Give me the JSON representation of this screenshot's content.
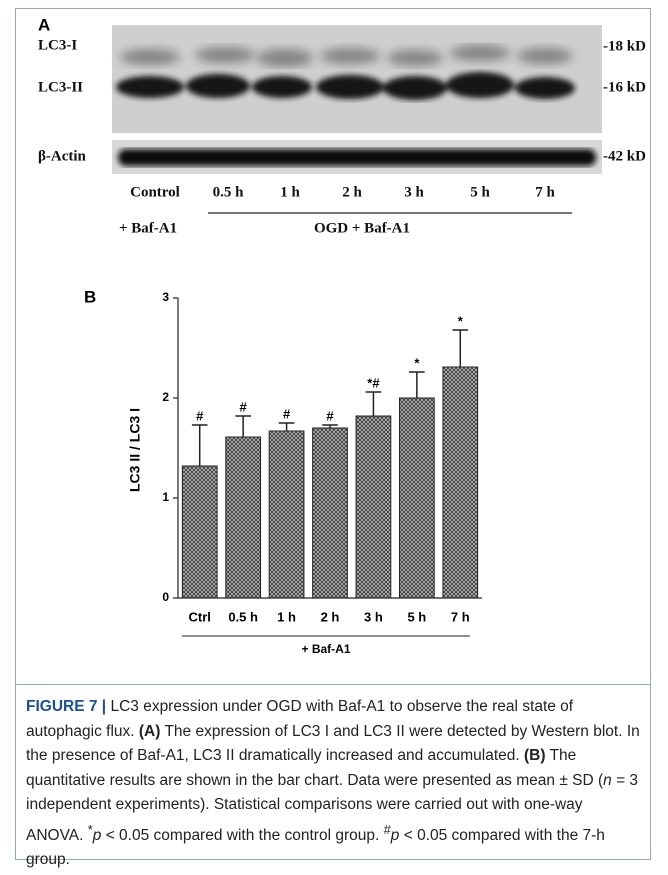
{
  "panel_a": {
    "label": "A",
    "bands": [
      "LC3-I",
      "LC3-II",
      "β-Actin"
    ],
    "sizes": [
      "-18 kD",
      "-16 kD",
      "-42 kD"
    ],
    "lanes": [
      "Control",
      "0.5 h",
      "1 h",
      "2 h",
      "3 h",
      "5 h",
      "7 h"
    ],
    "control_group": "+ Baf-A1",
    "treatment_group": "OGD + Baf-A1"
  },
  "chart_data": {
    "type": "bar",
    "panel_label": "B",
    "ylabel": "LC3 II / LC3 I",
    "group_label": "+ Baf-A1",
    "categories": [
      "Ctrl",
      "0.5 h",
      "1 h",
      "2 h",
      "3 h",
      "5 h",
      "7 h"
    ],
    "values": [
      1.32,
      1.61,
      1.67,
      1.7,
      1.82,
      2.0,
      2.31
    ],
    "errors": [
      0.41,
      0.21,
      0.08,
      0.03,
      0.24,
      0.26,
      0.37
    ],
    "annotations": [
      "#",
      "#",
      "#",
      "#",
      "*#",
      "*",
      "*"
    ],
    "ylim": [
      0,
      3
    ],
    "yticks": [
      0,
      1,
      2,
      3
    ]
  },
  "caption": {
    "label": "FIGURE 7",
    "separator": "|",
    "title": "LC3 expression under OGD with Baf-A1 to observe the real state of autophagic flux.",
    "a_label": "(A)",
    "a_text": "The expression of LC3 I and LC3 II were detected by Western blot. In the presence of Baf-A1, LC3 II dramatically increased and accumulated.",
    "b_label": "(B)",
    "b_text": "The quantitative results are shown in the bar chart. Data were presented as mean ± SD (",
    "n": "n",
    "n_text": "= 3 independent experiments). Statistical comparisons were carried out with one-way ANOVA.",
    "star": "*",
    "p1": "p",
    "p1_text": "< 0.05 compared with the control group.",
    "hash": "#",
    "p2": "p",
    "p2_text": "< 0.05 compared with the 7-h group."
  }
}
